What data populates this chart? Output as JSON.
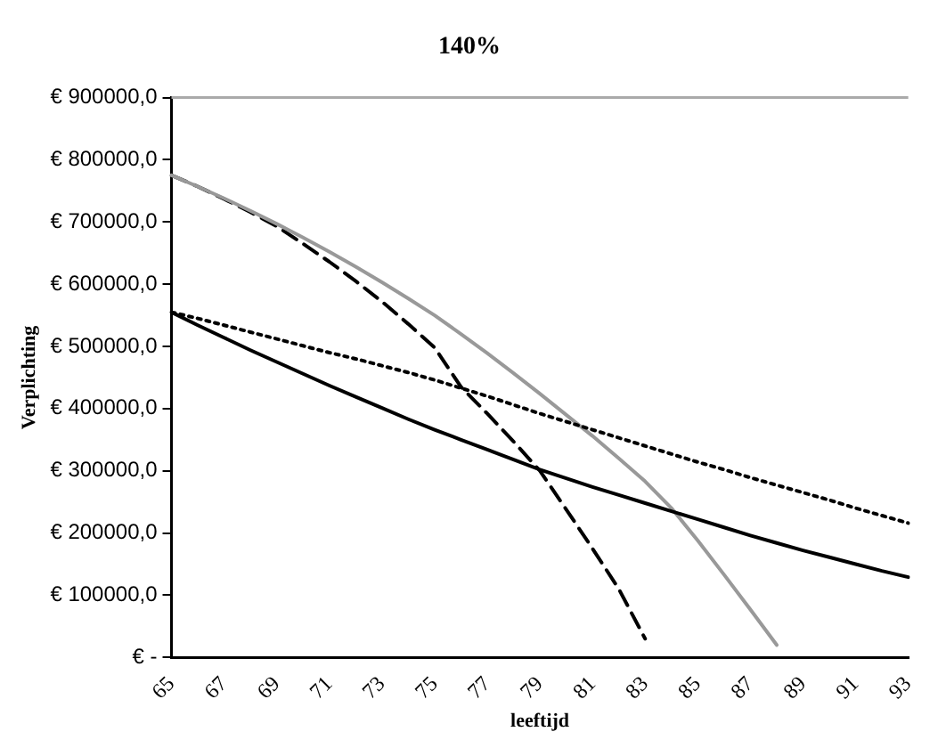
{
  "chart_data": {
    "type": "line",
    "title": "140%",
    "xlabel": "leeftijd",
    "ylabel": "Verplichting",
    "categories": [
      "65",
      null,
      "67",
      null,
      "69",
      null,
      "71",
      null,
      "73",
      null,
      "75",
      null,
      "77",
      null,
      "79",
      null,
      "81",
      null,
      "83",
      null,
      "85",
      null,
      "87",
      null,
      "89",
      null,
      "91",
      null,
      "93"
    ],
    "series": [
      {
        "color": "#000000",
        "line_style": "solid",
        "values": [
          555000,
          534000,
          514000,
          494000,
          475000,
          456000,
          437000,
          419000,
          401000,
          383000,
          366000,
          350000,
          334000,
          318000,
          302000,
          288000,
          274000,
          261000,
          248000,
          235000,
          222000,
          209000,
          196000,
          184000,
          172000,
          161000,
          150000,
          139000,
          129000
        ]
      },
      {
        "color": "#000000",
        "line_style": "dotted",
        "values": [
          555000,
          545000,
          534000,
          523000,
          512000,
          501000,
          490000,
          480000,
          469000,
          458000,
          446000,
          433000,
          420000,
          406000,
          392000,
          379000,
          366000,
          353000,
          340000,
          327000,
          314000,
          302000,
          289000,
          277000,
          265000,
          253000,
          240000,
          228000,
          216000
        ]
      },
      {
        "color": "#999999",
        "line_style": "solid",
        "values": [
          775000,
          757000,
          738000,
          718000,
          697000,
          675000,
          652000,
          628000,
          603000,
          577000,
          550000,
          520000,
          489000,
          457000,
          424000,
          390000,
          356000,
          320000,
          283000,
          240000,
          188000,
          133000,
          77000,
          20000,
          null,
          null,
          null,
          null,
          null
        ]
      },
      {
        "color": "#000000",
        "line_style": "dashed",
        "values": [
          775000,
          757000,
          737000,
          716000,
          693000,
          665000,
          636000,
          605000,
          572000,
          536000,
          498000,
          435000,
          392000,
          347000,
          300000,
          238000,
          175000,
          110000,
          30000,
          null,
          null,
          null,
          null,
          null,
          null,
          null,
          null,
          null,
          null
        ]
      }
    ],
    "ylim": [
      0,
      900000
    ],
    "yticks": [
      {
        "value": 0,
        "label": "€ -"
      },
      {
        "value": 100000,
        "label": "€ 100000,0"
      },
      {
        "value": 200000,
        "label": "€ 200000,0"
      },
      {
        "value": 300000,
        "label": "€ 300000,0"
      },
      {
        "value": 400000,
        "label": "€ 400000,0"
      },
      {
        "value": 500000,
        "label": "€ 500000,0"
      },
      {
        "value": 600000,
        "label": "€ 600000,0"
      },
      {
        "value": 700000,
        "label": "€ 700000,0"
      },
      {
        "value": 800000,
        "label": "€ 800000,0"
      },
      {
        "value": 900000,
        "label": "€ 900000,0"
      }
    ],
    "grid": false,
    "legend": false,
    "marker": "none"
  }
}
